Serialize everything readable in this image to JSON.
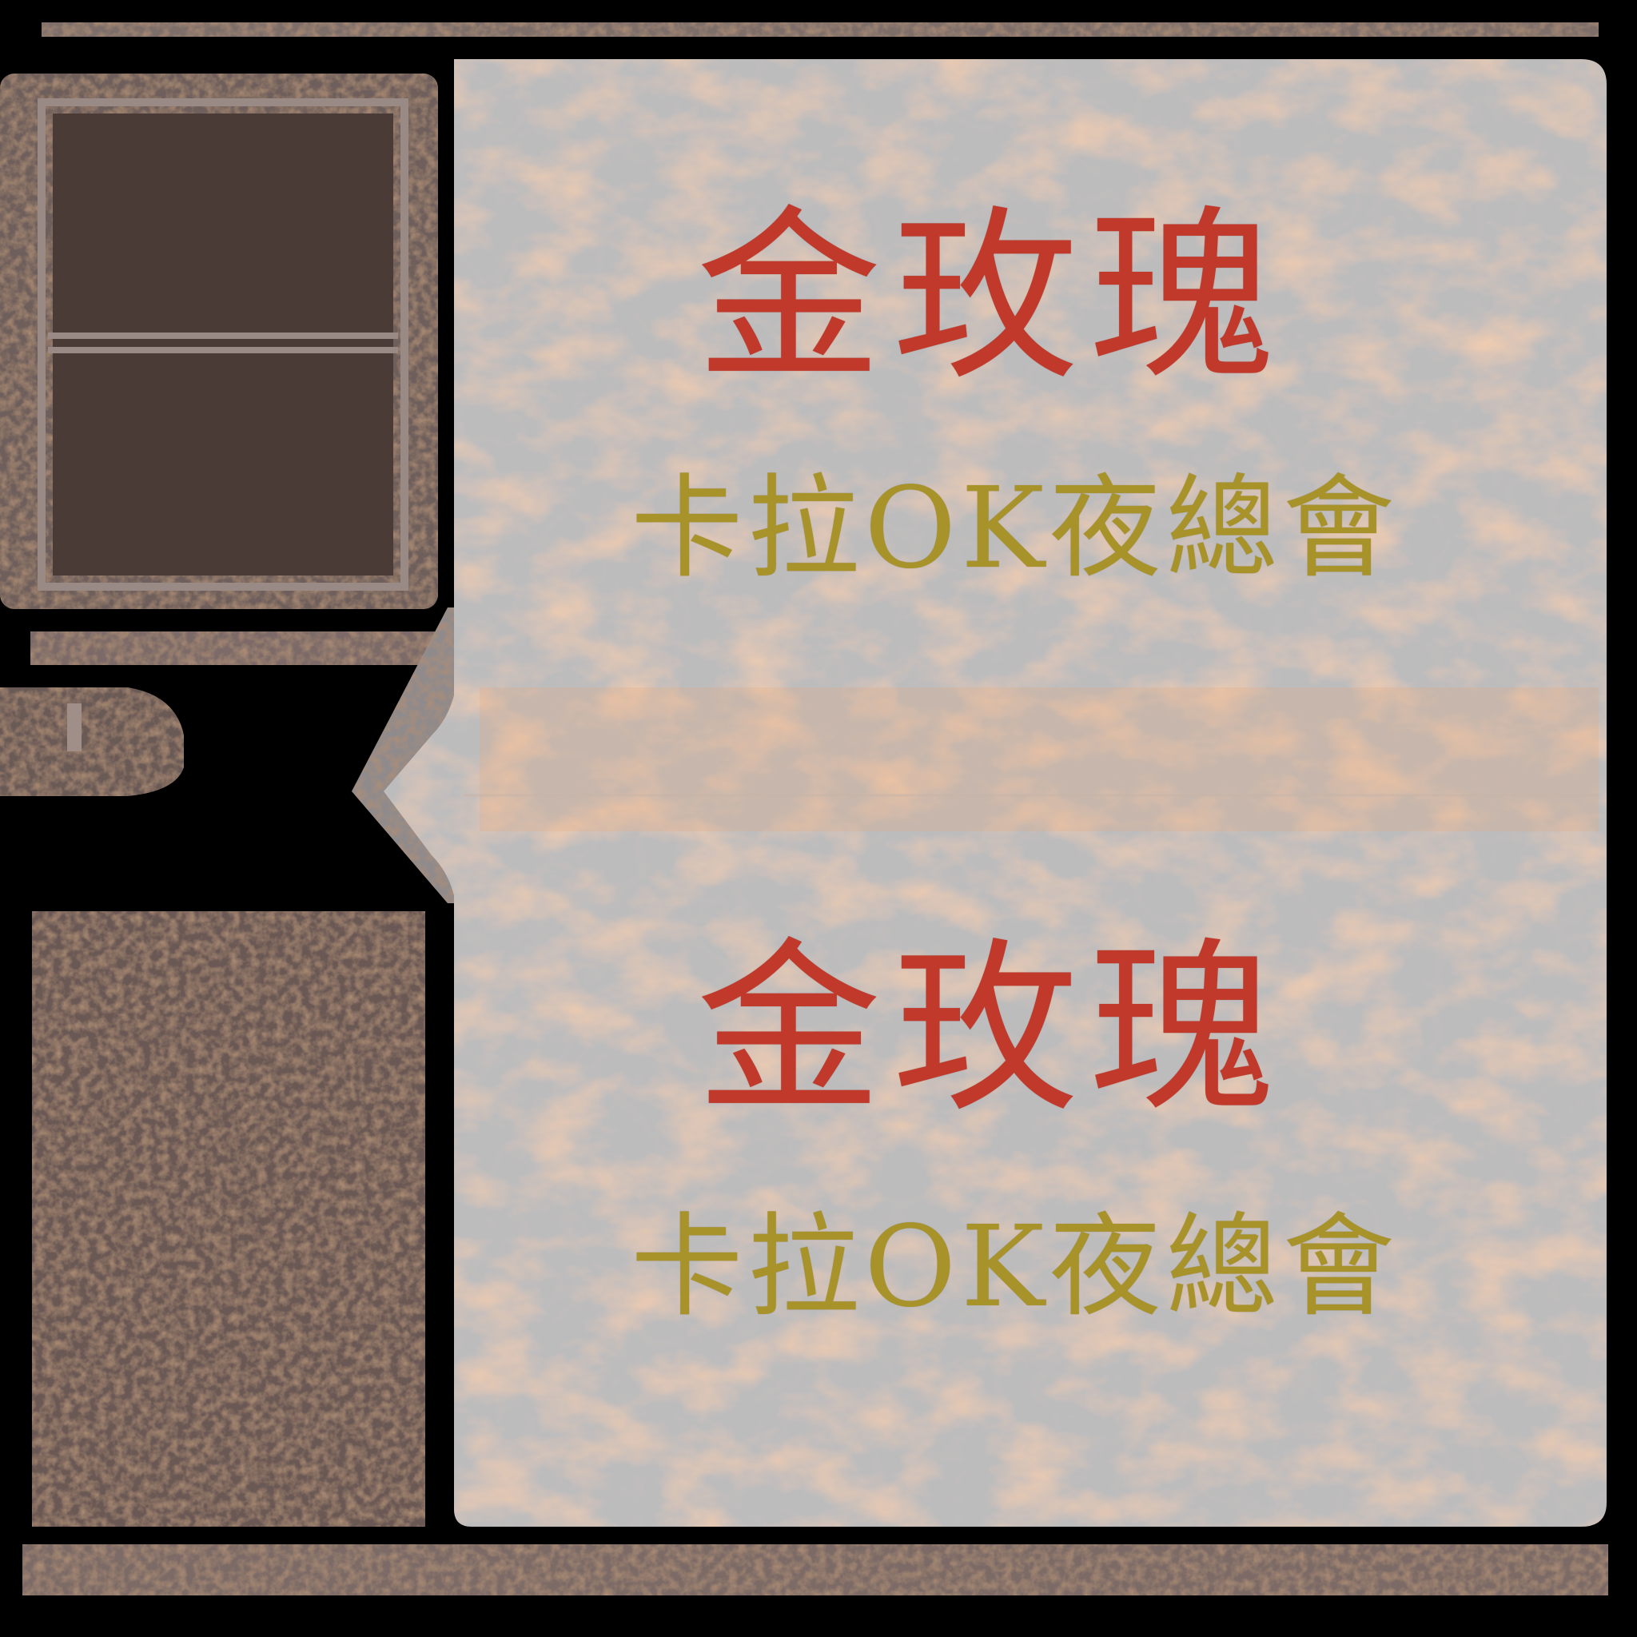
{
  "colors": {
    "background": "#000000",
    "rust_dark": "#5a4a45",
    "rust_light": "#8b7a76",
    "panel": "#bdbcbd",
    "rust_stain": "#e8a070",
    "title_red": "#c0392b",
    "subtitle_gold": "#a8922a"
  },
  "signs": [
    {
      "title": "金玫瑰",
      "subtitle": "卡拉OK夜總會"
    },
    {
      "title": "金玫瑰",
      "subtitle": "卡拉OK夜總會"
    }
  ]
}
